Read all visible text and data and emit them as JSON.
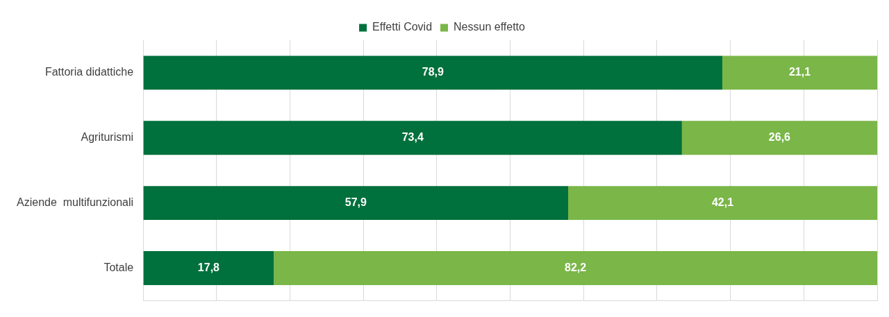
{
  "chart_data": {
    "type": "bar",
    "orientation": "horizontal",
    "stacked": true,
    "categories": [
      "Fattoria didattiche",
      "Agriturismi",
      "Aziende  multifunzionali",
      "Totale"
    ],
    "series": [
      {
        "name": "Effetti Covid",
        "color": "#00703c",
        "values": [
          78.9,
          73.4,
          57.9,
          17.8
        ],
        "value_labels": [
          "78,9",
          "73,4",
          "57,9",
          "17,8"
        ]
      },
      {
        "name": "Nessun effetto",
        "color": "#7ab648",
        "values": [
          21.1,
          26.6,
          42.1,
          82.2
        ],
        "value_labels": [
          "21,1",
          "26,6",
          "42,1",
          "82,2"
        ]
      }
    ],
    "tick_labels": "y",
    "grid": "x",
    "legend": "top"
  }
}
